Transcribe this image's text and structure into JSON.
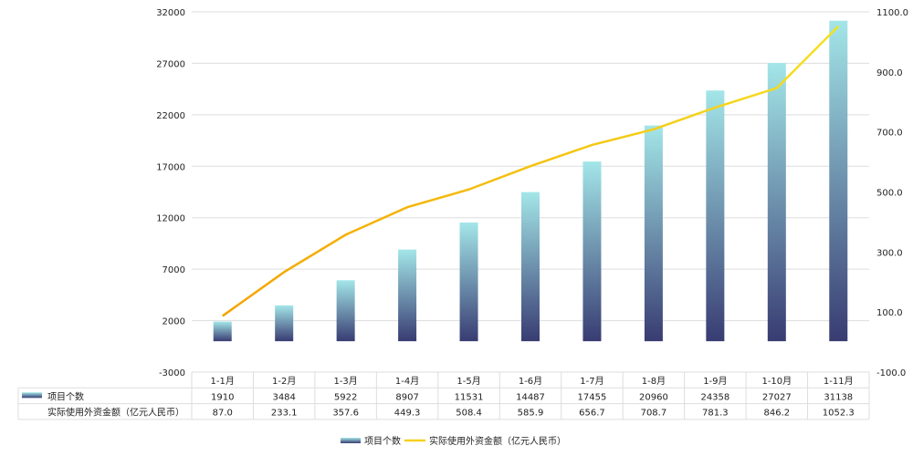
{
  "chart_data": {
    "type": "bar+line",
    "categories": [
      "1-1月",
      "1-2月",
      "1-3月",
      "1-4月",
      "1-5月",
      "1-6月",
      "1-7月",
      "1-8月",
      "1-9月",
      "1-10月",
      "1-11月"
    ],
    "series": [
      {
        "name": "项目个数",
        "type": "bar",
        "axis": "left",
        "values": [
          1910,
          3484,
          5922,
          8907,
          11531,
          14487,
          17455,
          20960,
          24358,
          27027,
          31138
        ]
      },
      {
        "name": "实际使用外资金额（亿元人民币）",
        "type": "line",
        "axis": "right",
        "values": [
          87.0,
          233.1,
          357.6,
          449.3,
          508.4,
          585.9,
          656.7,
          708.7,
          781.3,
          846.2,
          1052.3
        ]
      }
    ],
    "y_left": {
      "range": [
        -3000,
        32000
      ],
      "ticks": [
        "-3000",
        "2000",
        "7000",
        "12000",
        "17000",
        "22000",
        "27000",
        "32000"
      ]
    },
    "y_right": {
      "range": [
        -100,
        1100
      ],
      "ticks": [
        "-100.0",
        "100.0",
        "300.0",
        "500.0",
        "700.0",
        "900.0",
        "1100.0"
      ]
    },
    "grid": true,
    "legend": "bottom",
    "data_table": true,
    "colors": {
      "bar_top": "#a3e6e8",
      "bar_bottom": "#383c72",
      "line_start": "#f4a300",
      "line_end": "#f5e020",
      "grid": "#dddddd"
    }
  }
}
